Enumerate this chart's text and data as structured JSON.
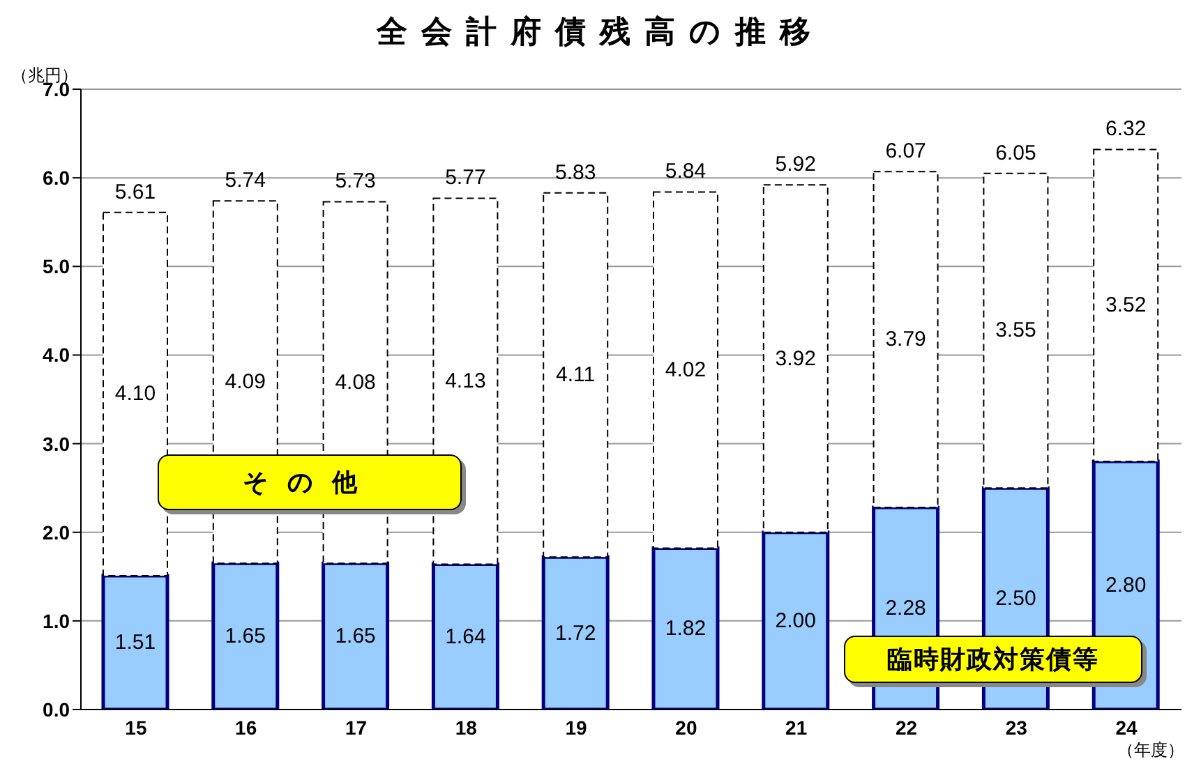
{
  "chart_data": {
    "type": "bar",
    "title": "全会計府債残高の推移",
    "ylabel": "（兆円）",
    "xlabel": "（年度）",
    "categories": [
      "15",
      "16",
      "17",
      "18",
      "19",
      "20",
      "21",
      "22",
      "23",
      "24"
    ],
    "stacked": true,
    "series": [
      {
        "name": "臨時財政対策債等",
        "color": "#99ccff",
        "values": [
          1.51,
          1.65,
          1.65,
          1.64,
          1.72,
          1.82,
          2.0,
          2.28,
          2.5,
          2.8
        ]
      },
      {
        "name": "その他",
        "color": "#ffffff",
        "values": [
          4.1,
          4.09,
          4.08,
          4.13,
          4.11,
          4.02,
          3.92,
          3.79,
          3.55,
          3.52
        ]
      }
    ],
    "totals": [
      "5.61",
      "5.74",
      "5.73",
      "5.77",
      "5.83",
      "5.84",
      "5.92",
      "6.07",
      "6.05",
      "6.32"
    ],
    "value_labels": [
      [
        "1.51",
        "1.65",
        "1.65",
        "1.64",
        "1.72",
        "1.82",
        "2.00",
        "2.28",
        "2.50",
        "2.80"
      ],
      [
        "4.10",
        "4.09",
        "4.08",
        "4.13",
        "4.11",
        "4.02",
        "3.92",
        "3.79",
        "3.55",
        "3.52"
      ]
    ],
    "ylim": [
      0,
      7
    ],
    "yticks": [
      {
        "value": 0,
        "label": "0.0"
      },
      {
        "value": 1,
        "label": "1.0"
      },
      {
        "value": 2,
        "label": "2.0"
      },
      {
        "value": 3,
        "label": "3.0"
      },
      {
        "value": 4,
        "label": "4.0"
      },
      {
        "value": 5,
        "label": "5.0"
      },
      {
        "value": 6,
        "label": "6.0"
      },
      {
        "value": 7,
        "label": "7.0"
      }
    ],
    "grid": "y",
    "legend": false
  }
}
